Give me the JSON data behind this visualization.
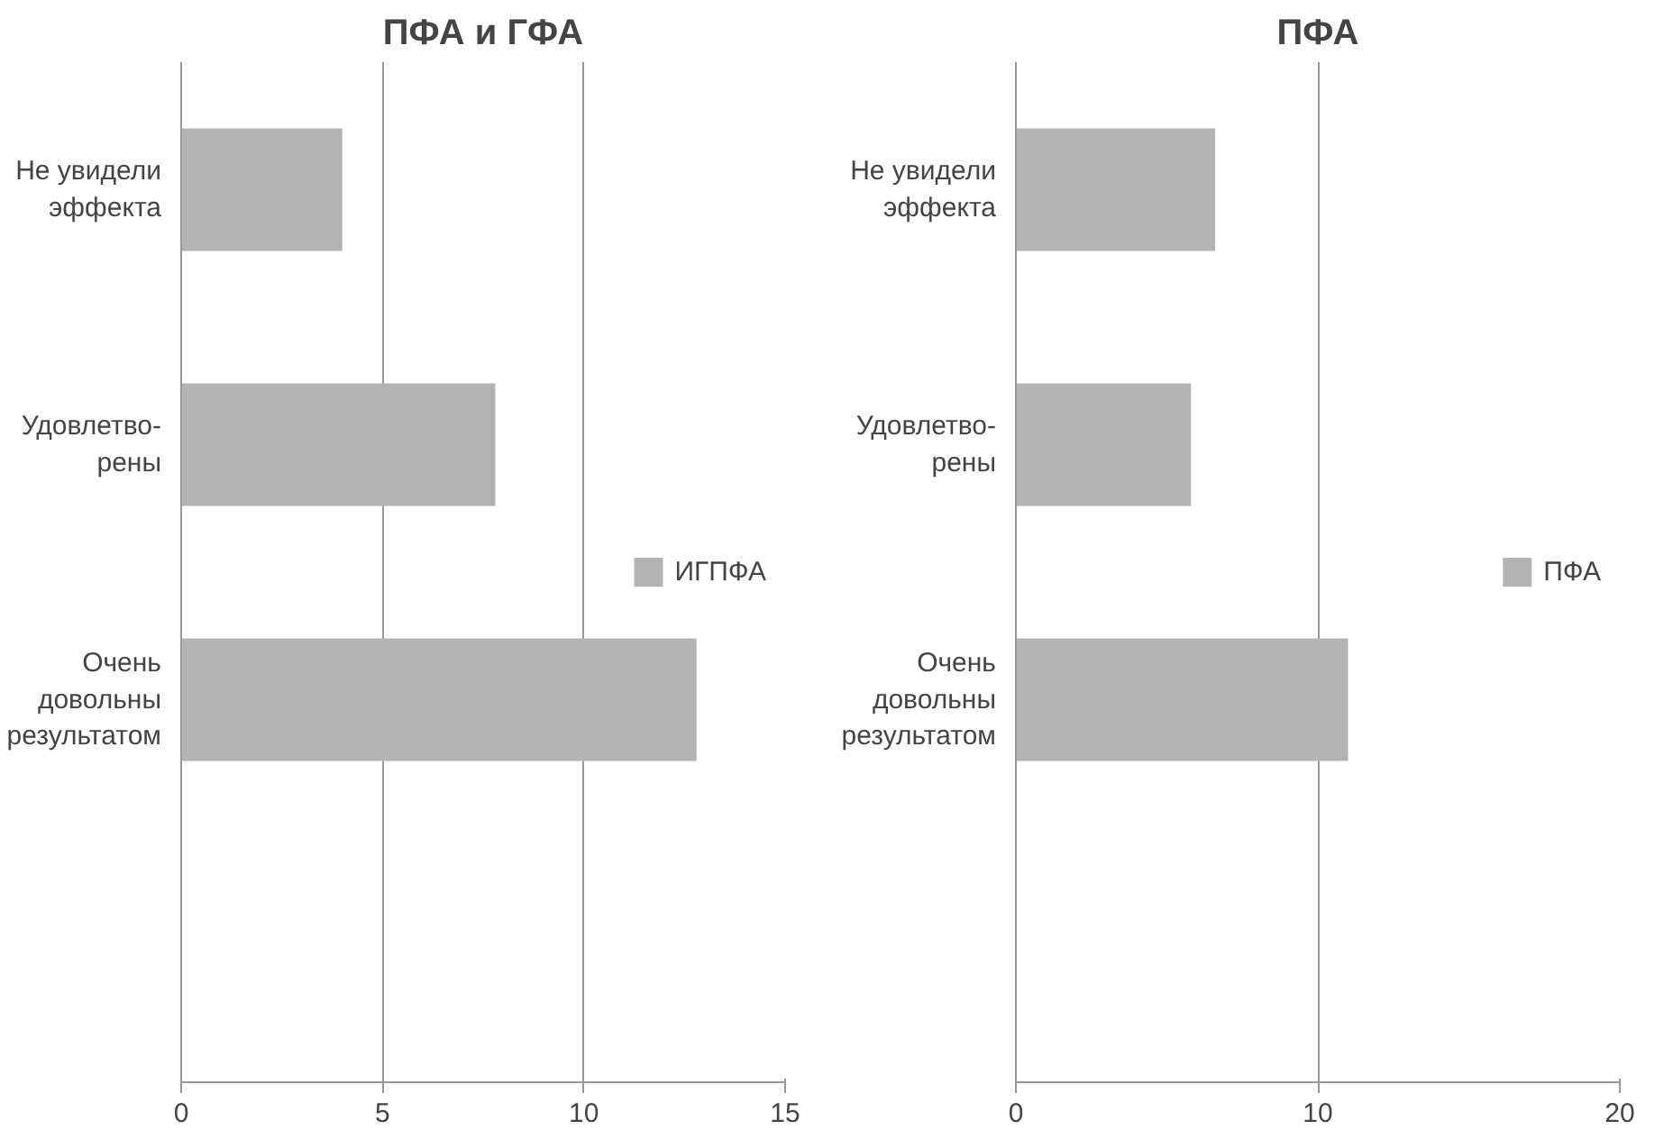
{
  "chart_data": [
    {
      "type": "bar",
      "orientation": "horizontal",
      "title": "ПФА и ГФА",
      "categories": [
        "Не увидели\nэффекта",
        "Удовлетво-\nрены",
        "Очень\nдовольны\nрезультатом",
        null
      ],
      "series": [
        {
          "name": "ИГПФА",
          "color": "#b3b3b3",
          "values": [
            4.0,
            7.8,
            12.8,
            null
          ]
        }
      ],
      "xlim": [
        0,
        15
      ],
      "xticks": [
        0,
        5,
        10,
        15
      ],
      "grid": "x",
      "legend": "right"
    },
    {
      "type": "bar",
      "orientation": "horizontal",
      "title": "ПФА",
      "categories": [
        "Не увидели\nэффекта",
        "Удовлетво-\nрены",
        "Очень\nдовольны\nрезультатом",
        null
      ],
      "series": [
        {
          "name": "ПФА",
          "color": "#b3b3b3",
          "values": [
            6.6,
            5.8,
            11.0,
            null
          ]
        }
      ],
      "xlim": [
        0,
        20
      ],
      "xticks": [
        0,
        10,
        20
      ],
      "grid": "x",
      "legend": "right"
    }
  ]
}
